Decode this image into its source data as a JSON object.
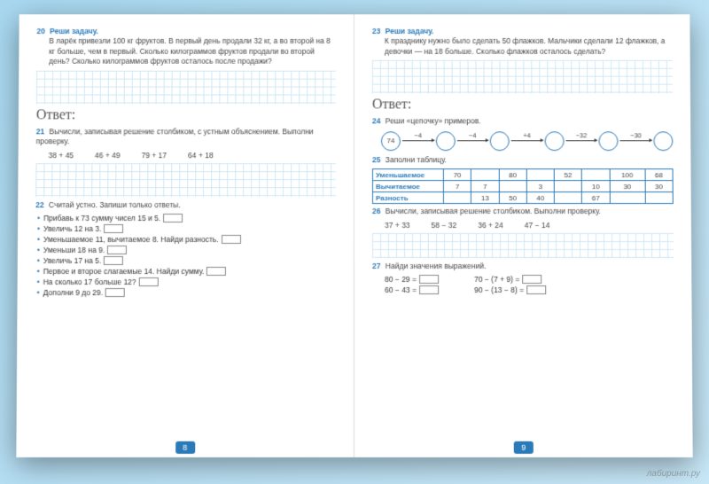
{
  "left": {
    "t20": {
      "num": "20",
      "label": "Реши задачу.",
      "text": "В ларёк привезли 100 кг фруктов. В первый день продали 32 кг, а во второй на 8 кг больше, чем в первый. Сколько килограммов фруктов продали во второй день? Сколько килограммов фруктов осталось после продажи?"
    },
    "answer": "Ответ:",
    "t21": {
      "num": "21",
      "text": "Вычисли, записывая решение столбиком, с устным объяснением. Выполни проверку.",
      "exprs": [
        "38 + 45",
        "46 + 49",
        "79 + 17",
        "64 + 18"
      ]
    },
    "t22": {
      "num": "22",
      "text": "Считай устно. Запиши только ответы.",
      "items": [
        "Прибавь к 73 сумму чисел 15 и 5.",
        "Увеличь 12 на 3.",
        "Уменьшаемое 11, вычитаемое 8. Найди разность.",
        "Уменьши 18 на 9.",
        "Увеличь 17 на 5.",
        "Первое и второе слагаемые 14. Найди сумму.",
        "На сколько 17 больше 12?",
        "Дополни 9 до 29."
      ]
    },
    "pageNum": "8"
  },
  "right": {
    "t23": {
      "num": "23",
      "label": "Реши задачу.",
      "text": "К празднику нужно было сделать 50 флажков. Мальчики сделали 12 флажков, а девочки — на 18 больше. Сколько флажков осталось сделать?"
    },
    "answer": "Ответ:",
    "t24": {
      "num": "24",
      "text": "Реши «цепочку» примеров.",
      "start": "74",
      "ops": [
        "−4",
        "−4",
        "+4",
        "−32",
        "−30"
      ]
    },
    "t25": {
      "num": "25",
      "text": "Заполни таблицу.",
      "rows": [
        {
          "label": "Уменьшаемое",
          "cells": [
            "70",
            "",
            "80",
            "",
            "52",
            "",
            "100",
            "68"
          ]
        },
        {
          "label": "Вычитаемое",
          "cells": [
            "7",
            "7",
            "",
            "3",
            "",
            "10",
            "30",
            "30"
          ]
        },
        {
          "label": "Разность",
          "cells": [
            "",
            "13",
            "50",
            "40",
            "",
            "67",
            "",
            ""
          ]
        }
      ]
    },
    "t26": {
      "num": "26",
      "text": "Вычисли, записывая решение столбиком. Выполни проверку.",
      "exprs": [
        "37 + 33",
        "58 − 32",
        "36 + 24",
        "47 − 14"
      ]
    },
    "t27": {
      "num": "27",
      "text": "Найди значения выражений.",
      "exprs": [
        [
          "80 − 29 =",
          "70 − (7 + 9) ="
        ],
        [
          "60 − 43 =",
          "90 − (13 − 8) ="
        ]
      ]
    },
    "pageNum": "9"
  },
  "watermark": "лабиринт.ру"
}
